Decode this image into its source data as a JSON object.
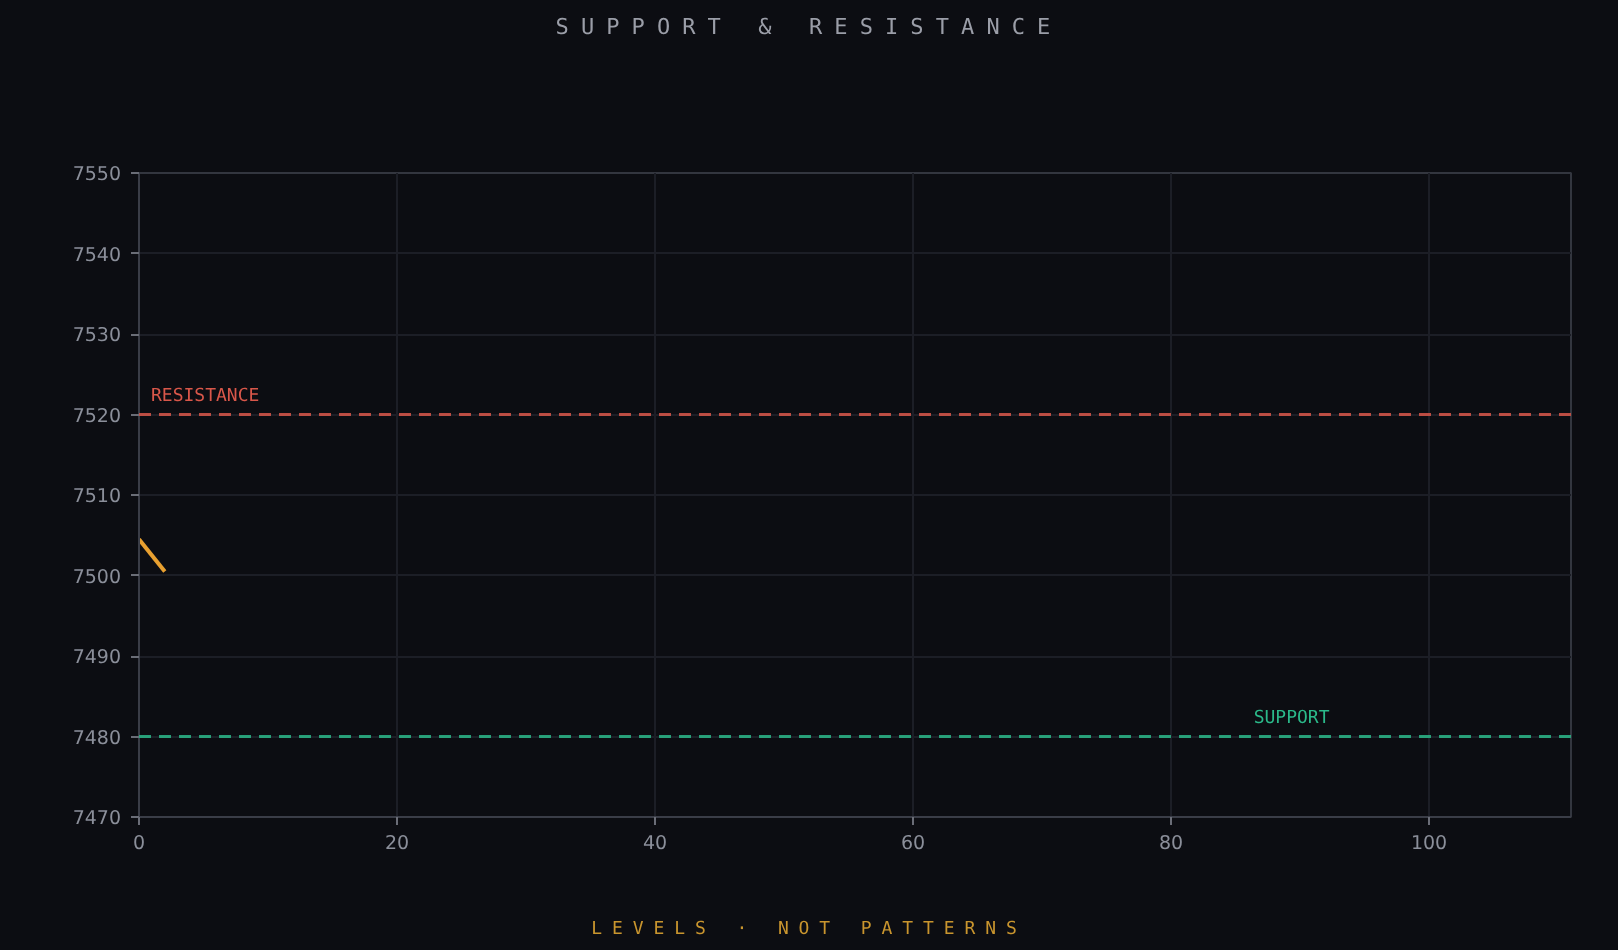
{
  "chart_data": {
    "type": "line",
    "title": "SUPPORT & RESISTANCE",
    "annotations": [
      "LEVELS · NOT PATTERNS"
    ],
    "series": [
      {
        "color": "#e8a030",
        "x": [
          0,
          2
        ],
        "values": [
          7504.5,
          7500.5
        ]
      }
    ],
    "xlim": [
      0,
      111
    ],
    "xticks": [
      0,
      20,
      40,
      60,
      80,
      100
    ],
    "ylim": [
      7470,
      7550
    ],
    "yticks": [
      7470,
      7480,
      7490,
      7500,
      7510,
      7520,
      7530,
      7540,
      7550
    ],
    "ref_lines": [
      {
        "axis": "y",
        "value": 7520,
        "label": "RESISTANCE",
        "color": "#d9574a",
        "line_style": "dashed"
      },
      {
        "axis": "y",
        "value": 7480,
        "label": "SUPPORT",
        "color": "#2bb98a",
        "line_style": "dashed"
      }
    ],
    "grid": true
  }
}
